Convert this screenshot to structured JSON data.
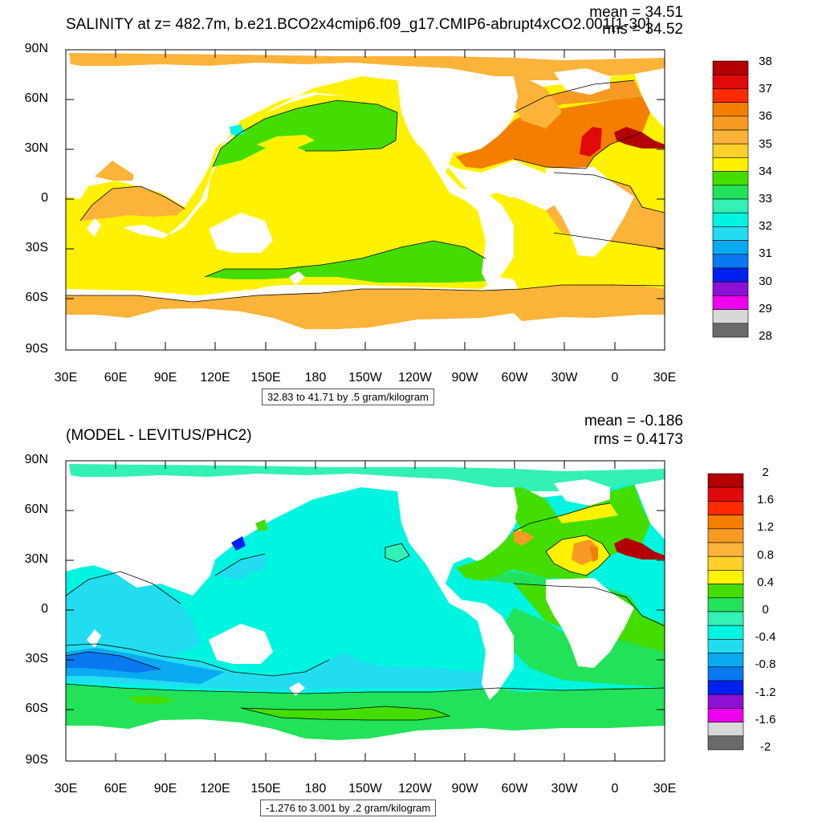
{
  "panels": [
    {
      "title": "SALINITY at z= 482.7m, b.e21.BCO2x4cmip6.f09_g17.CMIP6-abrupt4xCO2.001[1-30]",
      "stat_mean": "mean = 34.51",
      "stat_rms": "rms = 34.52",
      "info": "32.83 to 41.71 by .5 gram/kilogram",
      "legend_labels": [
        "38",
        "37",
        "36",
        "35",
        "34",
        "33",
        "32",
        "31",
        "30",
        "29",
        "28"
      ],
      "legend_colors": [
        "#b30000",
        "#e00a0a",
        "#ff2a00",
        "#f47e00",
        "#f79a24",
        "#fbb33a",
        "#ffd02a",
        "#fff200",
        "#44dd00",
        "#22e25a",
        "#33f0b5",
        "#00f5e0",
        "#22ddf0",
        "#0aaaf0",
        "#0a78f0",
        "#0020f0",
        "#8e10d5",
        "#ee00ee",
        "#d8d8d8",
        "#6a6a6a"
      ]
    },
    {
      "title": "(MODEL - LEVITUS/PHC2)",
      "stat_mean": "mean = -0.186",
      "stat_rms": "rms = 0.4173",
      "info": "-1.276 to 3.001 by .2 gram/kilogram",
      "legend_labels": [
        "2",
        "1.6",
        "1.2",
        "0.8",
        "0.4",
        "0",
        "-0.4",
        "-0.8",
        "-1.2",
        "-1.6",
        "-2"
      ],
      "legend_colors": [
        "#b30000",
        "#e00a0a",
        "#ff2a00",
        "#f47e00",
        "#f79a24",
        "#fbb33a",
        "#ffd02a",
        "#fff200",
        "#44dd00",
        "#22e25a",
        "#33f0b5",
        "#00f5e0",
        "#22ddf0",
        "#0aaaf0",
        "#0a78f0",
        "#0020f0",
        "#8e10d5",
        "#ee00ee",
        "#d8d8d8",
        "#6a6a6a"
      ]
    }
  ],
  "axes": {
    "lat_labels": [
      "90N",
      "60N",
      "30N",
      "0",
      "30S",
      "60S",
      "90S"
    ],
    "lon_labels": [
      "30E",
      "60E",
      "90E",
      "120E",
      "150E",
      "180",
      "150W",
      "120W",
      "90W",
      "60W",
      "30W",
      "0",
      "30E"
    ]
  },
  "colors": {
    "land": "#ffffff",
    "top_main": "#fff200",
    "top_south_band": "#fbb33a",
    "top_arctic": "#fbb33a",
    "top_pacific_fresh": "#44dd00",
    "top_atlantic_salty": "#f47e00",
    "top_med": "#e00a0a",
    "bottom_main": "#00f5e0",
    "bottom_arctic": "#33f0b5",
    "bottom_indian": "#22ddf0",
    "bottom_indian_low": "#0a78f0",
    "bottom_south": "#22e25a",
    "bottom_south_hi": "#44dd00",
    "bottom_atlantic": "#44dd00",
    "bottom_atl_hi": "#fff200",
    "bottom_atl_hot": "#f79a24"
  }
}
